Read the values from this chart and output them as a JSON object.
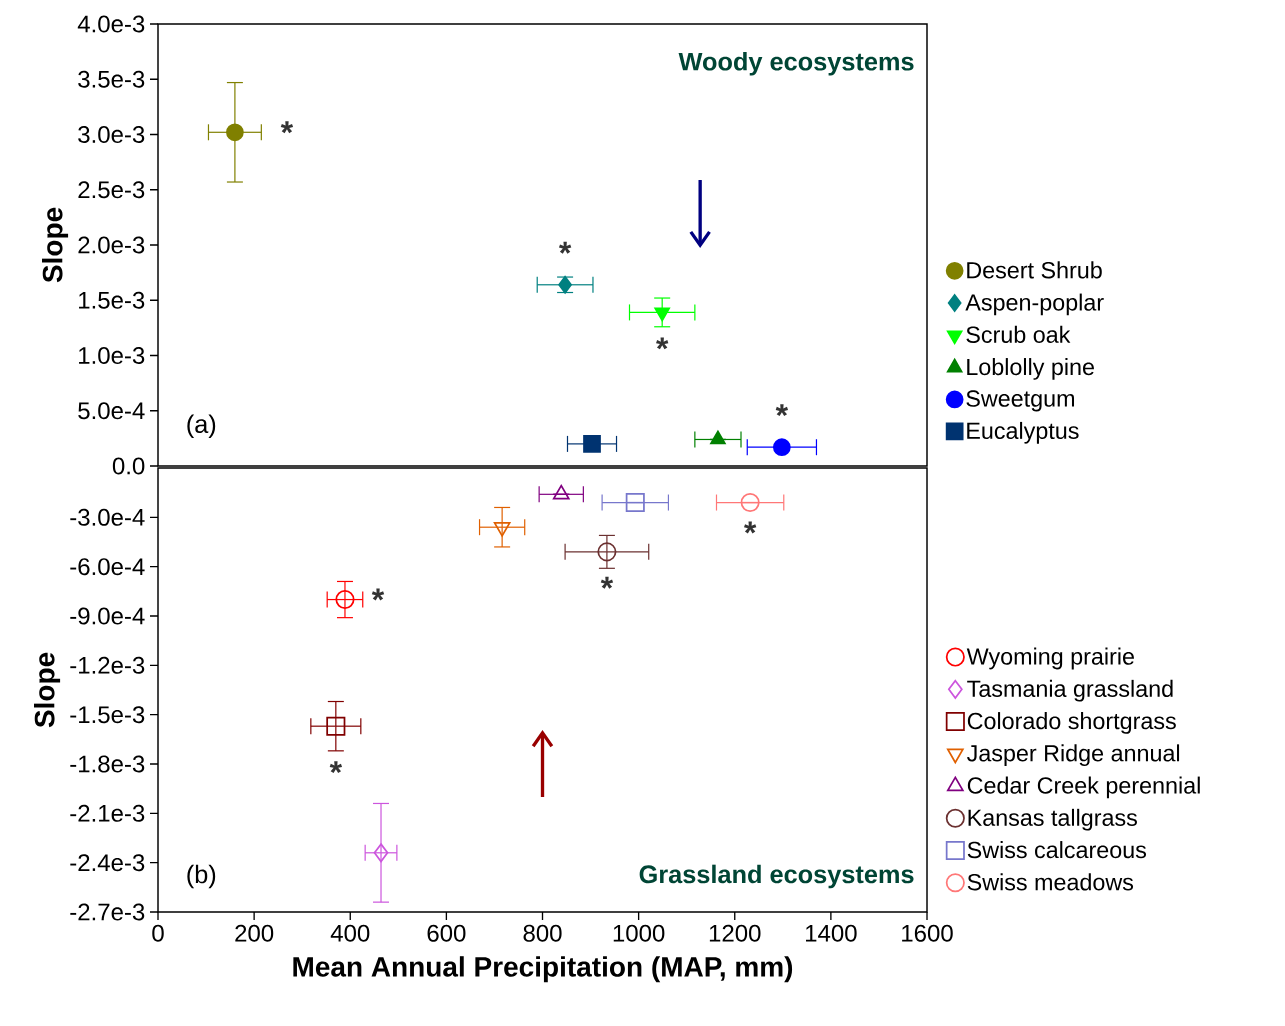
{
  "chart_data": [
    {
      "type": "scatter",
      "ylabel": "Slope",
      "xlim": [
        0,
        1600
      ],
      "ylim": [
        0,
        0.004
      ],
      "tick_labels": "y",
      "legend": "right",
      "yticks": [
        {
          "value": 0,
          "label": "0.0"
        },
        {
          "value": 0.0005,
          "label": "5.0e-4"
        },
        {
          "value": 0.001,
          "label": "1.0e-3"
        },
        {
          "value": 0.0015,
          "label": "1.5e-3"
        },
        {
          "value": 0.002,
          "label": "2.0e-3"
        },
        {
          "value": 0.0025,
          "label": "2.5e-3"
        },
        {
          "value": 0.003,
          "label": "3.0e-3"
        },
        {
          "value": 0.0035,
          "label": "3.5e-3"
        },
        {
          "value": 0.004,
          "label": "4.0e-3"
        }
      ],
      "series": [
        {
          "name": "Desert Shrub",
          "color": "#808000",
          "marker": "circle",
          "x": [
            160
          ],
          "values": [
            0.00302
          ],
          "errors": [
            0.00045
          ],
          "xerrors": [
            55
          ]
        },
        {
          "name": "Aspen-poplar",
          "color": "#008080",
          "marker": "diamond",
          "x": [
            847
          ],
          "values": [
            0.00164
          ],
          "errors": [
            7e-05
          ],
          "xerrors": [
            58
          ]
        },
        {
          "name": "Scrub oak",
          "color": "#00ff00",
          "marker": "triangle-down",
          "x": [
            1049
          ],
          "values": [
            0.00139
          ],
          "errors": [
            0.00013
          ],
          "xerrors": [
            68
          ]
        },
        {
          "name": "Loblolly pine",
          "color": "#008000",
          "marker": "triangle",
          "x": [
            1165
          ],
          "values": [
            0.00024
          ],
          "errors": [
            null
          ],
          "xerrors": [
            48
          ]
        },
        {
          "name": "Sweetgum",
          "color": "#0000ff",
          "marker": "circle",
          "x": [
            1298
          ],
          "values": [
            0.00017
          ],
          "errors": [
            null
          ],
          "xerrors": [
            72
          ]
        },
        {
          "name": "Eucalyptus",
          "color": "#003370",
          "marker": "square",
          "x": [
            903
          ],
          "values": [
            0.0002
          ],
          "errors": [
            null
          ],
          "xerrors": [
            51
          ]
        }
      ],
      "annotations": [
        "(a)",
        "Woody ecosystems",
        {
          "text": "*",
          "x": 160,
          "y": 0.00302
        },
        {
          "text": "*",
          "x": 847,
          "y": 0.00164
        },
        {
          "text": "*",
          "x": 1049,
          "y": 0.00139
        },
        {
          "text": "*",
          "x": 1298,
          "y": 0.00017
        }
      ]
    },
    {
      "type": "scatter",
      "xlabel": "Mean Annual Precipitation (MAP, mm)",
      "ylabel": "Slope",
      "xlim": [
        0,
        1600
      ],
      "ylim": [
        -0.0027,
        0
      ],
      "legend": "right",
      "xticks": [
        0,
        200,
        400,
        600,
        800,
        1000,
        1200,
        1400,
        1600
      ],
      "yticks": [
        {
          "value": -0.0003,
          "label": "-3.0e-4"
        },
        {
          "value": -0.0006,
          "label": "-6.0e-4"
        },
        {
          "value": -0.0009,
          "label": "-9.0e-4"
        },
        {
          "value": -0.0012,
          "label": "-1.2e-3"
        },
        {
          "value": -0.0015,
          "label": "-1.5e-3"
        },
        {
          "value": -0.0018,
          "label": "-1.8e-3"
        },
        {
          "value": -0.0021,
          "label": "-2.1e-3"
        },
        {
          "value": -0.0024,
          "label": "-2.4e-3"
        },
        {
          "value": -0.0027,
          "label": "-2.7e-3"
        }
      ],
      "series": [
        {
          "name": "Wyoming prairie",
          "color": "#ff0000",
          "marker": "circle",
          "x": [
            389
          ],
          "values": [
            -0.0008
          ],
          "errors": [
            0.00011
          ],
          "xerrors": [
            37
          ]
        },
        {
          "name": "Tasmania grassland",
          "color": "#cc55dd",
          "marker": "diamond",
          "x": [
            464
          ],
          "values": [
            -0.00234
          ],
          "errors": [
            0.0003
          ],
          "xerrors": [
            33
          ]
        },
        {
          "name": "Colorado shortgrass",
          "color": "#800000",
          "marker": "square",
          "x": [
            370
          ],
          "values": [
            -0.00157
          ],
          "errors": [
            0.00015
          ],
          "xerrors": [
            52
          ]
        },
        {
          "name": "Jasper Ridge annual",
          "color": "#e06000",
          "marker": "triangle-down",
          "x": [
            716
          ],
          "values": [
            -0.00036
          ],
          "errors": [
            0.00012
          ],
          "xerrors": [
            47
          ]
        },
        {
          "name": "Cedar Creek perennial",
          "color": "#800080",
          "marker": "triangle",
          "x": [
            839
          ],
          "values": [
            -0.00016
          ],
          "errors": [
            null
          ],
          "xerrors": [
            46
          ]
        },
        {
          "name": "Kansas tallgrass",
          "color": "#6b3030",
          "marker": "circle",
          "x": [
            934
          ],
          "values": [
            -0.00051
          ],
          "errors": [
            0.0001
          ],
          "xerrors": [
            87
          ]
        },
        {
          "name": "Swiss calcareous",
          "color": "#7777cc",
          "marker": "square",
          "x": [
            993
          ],
          "values": [
            -0.00021
          ],
          "errors": [
            null
          ],
          "xerrors": [
            69
          ]
        },
        {
          "name": "Swiss meadows",
          "color": "#ff7777",
          "marker": "circle",
          "x": [
            1232
          ],
          "values": [
            -0.00021
          ],
          "errors": [
            null
          ],
          "xerrors": [
            70
          ]
        }
      ],
      "annotations": [
        "(b)",
        "Grassland ecosystems",
        {
          "text": "*",
          "x": 389,
          "y": -0.0008
        },
        {
          "text": "*",
          "x": 934,
          "y": -0.00051
        },
        {
          "text": "*",
          "x": 1232,
          "y": -0.00021
        },
        {
          "text": "*",
          "x": 370,
          "y": -0.00157
        }
      ]
    }
  ]
}
